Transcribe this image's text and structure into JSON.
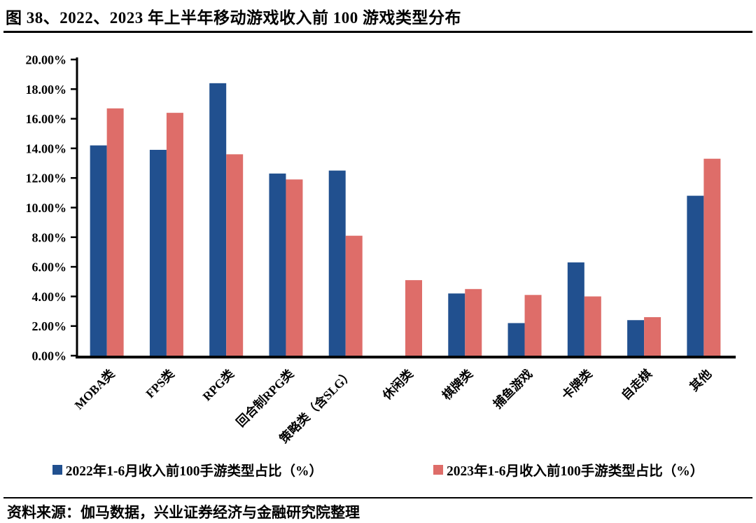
{
  "figure": {
    "title": "图 38、2022、2023 年上半年移动游戏收入前 100 游戏类型分布",
    "source_line": "资料来源：伽马数据，兴业证券经济与金融研究院整理"
  },
  "chart_data": {
    "type": "bar",
    "title": "2022、2023 年上半年移动游戏收入前 100 游戏类型分布",
    "categories": [
      "MOBA类",
      "FPS类",
      "RPG类",
      "回合制RPG类",
      "策略类（含SLG）",
      "休闲类",
      "棋牌类",
      "捕鱼游戏",
      "卡牌类",
      "自走棋",
      "其他"
    ],
    "series": [
      {
        "key": "2022",
        "name": "2022年1-6月收入前100手游类型占比（%）",
        "color": "#21508F",
        "values": [
          14.2,
          13.9,
          18.4,
          12.3,
          12.5,
          0,
          4.2,
          2.2,
          6.3,
          2.4,
          10.8
        ]
      },
      {
        "key": "2023",
        "name": "2023年1-6月收入前100手游类型占比（%）",
        "color": "#DE6D69",
        "values": [
          16.7,
          16.4,
          13.6,
          11.9,
          8.1,
          5.1,
          4.5,
          4.1,
          4.0,
          2.6,
          13.3
        ]
      }
    ],
    "xlabel": "",
    "ylabel": "",
    "ylim": [
      0,
      20
    ],
    "ytick_step": 2,
    "ytick_labels": [
      "0.00%",
      "2.00%",
      "4.00%",
      "6.00%",
      "8.00%",
      "10.00%",
      "12.00%",
      "14.00%",
      "16.00%",
      "18.00%",
      "20.00%"
    ],
    "grid": false,
    "legend_position": "bottom",
    "bar_unit": "percent"
  }
}
